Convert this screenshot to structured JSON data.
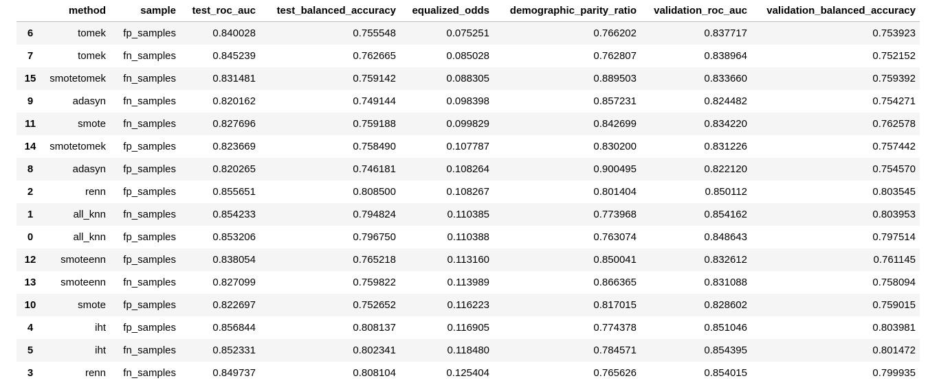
{
  "table": {
    "columns": {
      "index": "",
      "method": "method",
      "sample": "sample",
      "test_roc_auc": "test_roc_auc",
      "test_balanced_accuracy": "test_balanced_accuracy",
      "equalized_odds": "equalized_odds",
      "demographic_parity_ratio": "demographic_parity_ratio",
      "validation_roc_auc": "validation_roc_auc",
      "validation_balanced_accuracy": "validation_balanced_accuracy"
    },
    "rows": [
      {
        "index": "6",
        "method": "tomek",
        "sample": "fp_samples",
        "test_roc_auc": "0.840028",
        "test_balanced_accuracy": "0.755548",
        "equalized_odds": "0.075251",
        "demographic_parity_ratio": "0.766202",
        "validation_roc_auc": "0.837717",
        "validation_balanced_accuracy": "0.753923"
      },
      {
        "index": "7",
        "method": "tomek",
        "sample": "fn_samples",
        "test_roc_auc": "0.845239",
        "test_balanced_accuracy": "0.762665",
        "equalized_odds": "0.085028",
        "demographic_parity_ratio": "0.762807",
        "validation_roc_auc": "0.838964",
        "validation_balanced_accuracy": "0.752152"
      },
      {
        "index": "15",
        "method": "smotetomek",
        "sample": "fn_samples",
        "test_roc_auc": "0.831481",
        "test_balanced_accuracy": "0.759142",
        "equalized_odds": "0.088305",
        "demographic_parity_ratio": "0.889503",
        "validation_roc_auc": "0.833660",
        "validation_balanced_accuracy": "0.759392"
      },
      {
        "index": "9",
        "method": "adasyn",
        "sample": "fn_samples",
        "test_roc_auc": "0.820162",
        "test_balanced_accuracy": "0.749144",
        "equalized_odds": "0.098398",
        "demographic_parity_ratio": "0.857231",
        "validation_roc_auc": "0.824482",
        "validation_balanced_accuracy": "0.754271"
      },
      {
        "index": "11",
        "method": "smote",
        "sample": "fn_samples",
        "test_roc_auc": "0.827696",
        "test_balanced_accuracy": "0.759188",
        "equalized_odds": "0.099829",
        "demographic_parity_ratio": "0.842699",
        "validation_roc_auc": "0.834220",
        "validation_balanced_accuracy": "0.762578"
      },
      {
        "index": "14",
        "method": "smotetomek",
        "sample": "fp_samples",
        "test_roc_auc": "0.823669",
        "test_balanced_accuracy": "0.758490",
        "equalized_odds": "0.107787",
        "demographic_parity_ratio": "0.830200",
        "validation_roc_auc": "0.831226",
        "validation_balanced_accuracy": "0.757442"
      },
      {
        "index": "8",
        "method": "adasyn",
        "sample": "fp_samples",
        "test_roc_auc": "0.820265",
        "test_balanced_accuracy": "0.746181",
        "equalized_odds": "0.108264",
        "demographic_parity_ratio": "0.900495",
        "validation_roc_auc": "0.822120",
        "validation_balanced_accuracy": "0.754570"
      },
      {
        "index": "2",
        "method": "renn",
        "sample": "fp_samples",
        "test_roc_auc": "0.855651",
        "test_balanced_accuracy": "0.808500",
        "equalized_odds": "0.108267",
        "demographic_parity_ratio": "0.801404",
        "validation_roc_auc": "0.850112",
        "validation_balanced_accuracy": "0.803545"
      },
      {
        "index": "1",
        "method": "all_knn",
        "sample": "fn_samples",
        "test_roc_auc": "0.854233",
        "test_balanced_accuracy": "0.794824",
        "equalized_odds": "0.110385",
        "demographic_parity_ratio": "0.773968",
        "validation_roc_auc": "0.854162",
        "validation_balanced_accuracy": "0.803953"
      },
      {
        "index": "0",
        "method": "all_knn",
        "sample": "fp_samples",
        "test_roc_auc": "0.853206",
        "test_balanced_accuracy": "0.796750",
        "equalized_odds": "0.110388",
        "demographic_parity_ratio": "0.763074",
        "validation_roc_auc": "0.848643",
        "validation_balanced_accuracy": "0.797514"
      },
      {
        "index": "12",
        "method": "smoteenn",
        "sample": "fp_samples",
        "test_roc_auc": "0.838054",
        "test_balanced_accuracy": "0.765218",
        "equalized_odds": "0.113160",
        "demographic_parity_ratio": "0.850041",
        "validation_roc_auc": "0.832612",
        "validation_balanced_accuracy": "0.761145"
      },
      {
        "index": "13",
        "method": "smoteenn",
        "sample": "fn_samples",
        "test_roc_auc": "0.827099",
        "test_balanced_accuracy": "0.759822",
        "equalized_odds": "0.113989",
        "demographic_parity_ratio": "0.866365",
        "validation_roc_auc": "0.831088",
        "validation_balanced_accuracy": "0.758094"
      },
      {
        "index": "10",
        "method": "smote",
        "sample": "fp_samples",
        "test_roc_auc": "0.822697",
        "test_balanced_accuracy": "0.752652",
        "equalized_odds": "0.116223",
        "demographic_parity_ratio": "0.817015",
        "validation_roc_auc": "0.828602",
        "validation_balanced_accuracy": "0.759015"
      },
      {
        "index": "4",
        "method": "iht",
        "sample": "fp_samples",
        "test_roc_auc": "0.856844",
        "test_balanced_accuracy": "0.808137",
        "equalized_odds": "0.116905",
        "demographic_parity_ratio": "0.774378",
        "validation_roc_auc": "0.851046",
        "validation_balanced_accuracy": "0.803981"
      },
      {
        "index": "5",
        "method": "iht",
        "sample": "fn_samples",
        "test_roc_auc": "0.852331",
        "test_balanced_accuracy": "0.802341",
        "equalized_odds": "0.118480",
        "demographic_parity_ratio": "0.784571",
        "validation_roc_auc": "0.854395",
        "validation_balanced_accuracy": "0.801472"
      },
      {
        "index": "3",
        "method": "renn",
        "sample": "fn_samples",
        "test_roc_auc": "0.849737",
        "test_balanced_accuracy": "0.808104",
        "equalized_odds": "0.125404",
        "demographic_parity_ratio": "0.765626",
        "validation_roc_auc": "0.854015",
        "validation_balanced_accuracy": "0.799935"
      }
    ]
  }
}
